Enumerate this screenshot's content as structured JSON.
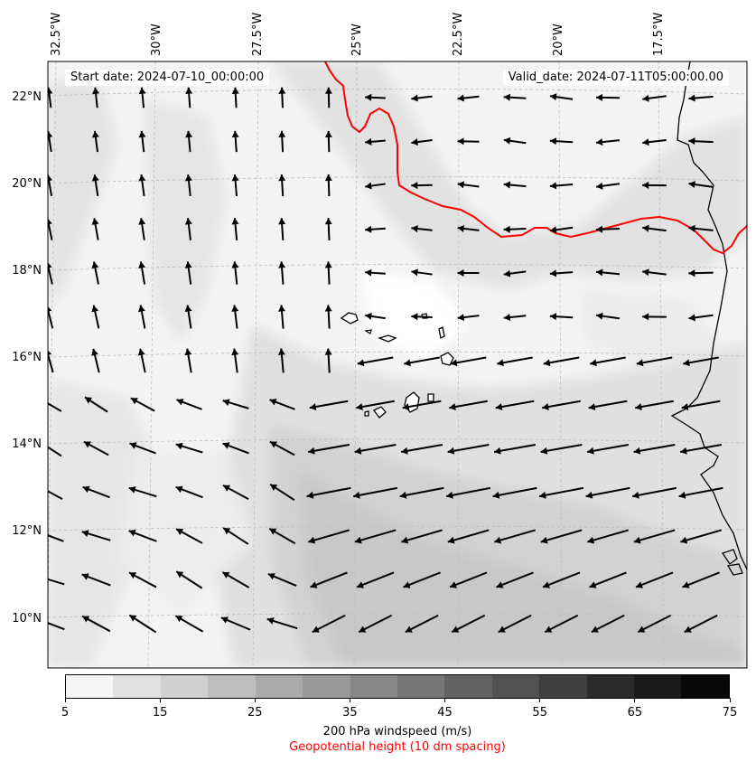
{
  "map": {
    "start_date": "Start date: 2024-07-10_00:00:00",
    "valid_date": "Valid_date: 2024-07-11T05:00:00.00",
    "lon_labels": [
      "32.5°W",
      "30°W",
      "27.5°W",
      "25°W",
      "22.5°W",
      "20°W",
      "17.5°W"
    ],
    "lat_labels": [
      "22°N",
      "20°N",
      "18°N",
      "16°N",
      "14°N",
      "12°N",
      "10°N"
    ],
    "wind_field": "200 hPa wind vectors over shaded windspeed",
    "contour_color": "#ff0000"
  },
  "colorbar": {
    "ticks": [
      "5",
      "15",
      "25",
      "35",
      "45",
      "55",
      "65",
      "75"
    ],
    "colors": [
      "#f5f5f5",
      "#e1e1e1",
      "#d0d0d0",
      "#bdbdbd",
      "#aaaaaa",
      "#999999",
      "#888888",
      "#767676",
      "#636363",
      "#525252",
      "#3f3f3f",
      "#2a2a2a",
      "#1a1a1a",
      "#080808"
    ],
    "label": "200 hPa windspeed (m/s)",
    "label2": "Geopotential height (10 dm spacing)"
  }
}
